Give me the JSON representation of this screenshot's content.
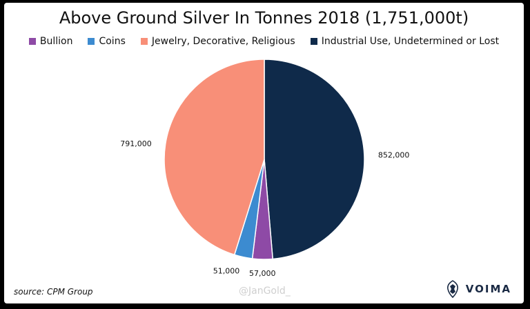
{
  "chart_data": {
    "type": "pie",
    "title": "Above Ground Silver In Tonnes 2018 (1,751,000t)",
    "legend_placement": "top",
    "series": [
      {
        "name": "Industrial Use, Undetermined or Lost",
        "value": 852000,
        "label": "852,000",
        "color": "#0f2a4a"
      },
      {
        "name": "Bullion",
        "value": 57000,
        "label": "57,000",
        "color": "#8e4aa6"
      },
      {
        "name": "Coins",
        "value": 51000,
        "label": "51,000",
        "color": "#3c8bd0"
      },
      {
        "name": "Jewelry, Decorative, Religious",
        "value": 791000,
        "label": "791,000",
        "color": "#f88f78"
      }
    ],
    "legend_order": [
      "Bullion",
      "Coins",
      "Jewelry, Decorative, Religious",
      "Industrial Use, Undetermined or Lost"
    ]
  },
  "footer": {
    "source": "source: CPM Group",
    "watermark": "@JanGold_",
    "logo_text": "VOIMA"
  }
}
